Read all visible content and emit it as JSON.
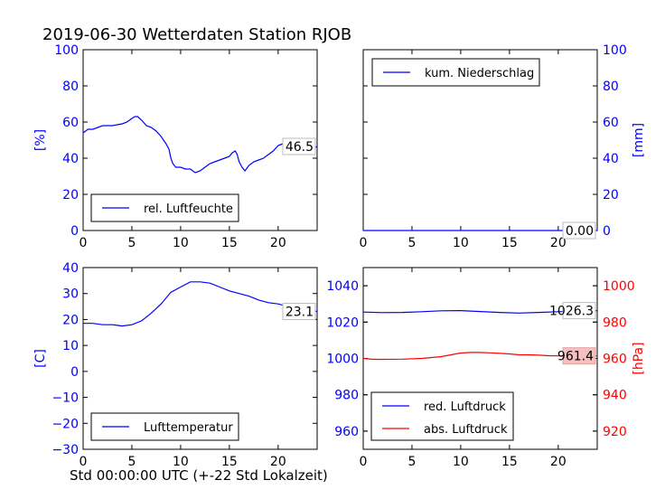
{
  "figure": {
    "title": "2019-06-30 Wetterdaten Station RJOB",
    "xlabel": "Std 00:00:00 UTC (+-22 Std Lokalzeit)"
  },
  "chart_data": [
    {
      "id": "humidity",
      "type": "line",
      "ylabel": "[%]",
      "ylabel_color": "#0000ff",
      "tick_color": "#0000ff",
      "xlim": [
        0,
        24
      ],
      "ylim": [
        0,
        100
      ],
      "xticks": [
        0,
        5,
        10,
        15,
        20
      ],
      "yticks": [
        0,
        20,
        40,
        60,
        80,
        100
      ],
      "grid": false,
      "legend_position": "lower-left",
      "series": [
        {
          "name": "rel. Luftfeuchte",
          "color": "#0000ff",
          "x": [
            0,
            0.5,
            1,
            2,
            3,
            4,
            4.5,
            5,
            5.3,
            5.6,
            6,
            6.5,
            7,
            7.5,
            8,
            8.5,
            8.8,
            9,
            9.2,
            9.5,
            10,
            10.5,
            11,
            11.5,
            12,
            12.5,
            13,
            13.5,
            14,
            14.5,
            15,
            15.3,
            15.6,
            15.8,
            16,
            16.3,
            16.6,
            17,
            17.5,
            18,
            18.5,
            19,
            19.5,
            20,
            20.5,
            21,
            21.5,
            22,
            22.5,
            23,
            23.5,
            24
          ],
          "y": [
            54,
            56,
            56,
            58,
            58,
            59,
            60,
            62,
            63,
            63,
            61,
            58,
            57,
            55,
            52,
            48,
            45,
            40,
            37,
            35,
            35,
            34,
            34,
            32,
            33,
            35,
            37,
            38,
            39,
            40,
            41,
            43,
            44,
            42,
            38,
            35,
            33,
            36,
            38,
            39,
            40,
            42,
            44,
            47,
            48,
            49,
            49,
            48,
            46,
            44,
            45,
            46.5
          ]
        }
      ],
      "value_label": "46.5"
    },
    {
      "id": "precipitation",
      "type": "line",
      "ylabel": "[mm]",
      "ylabel_color": "#0000ff",
      "tick_color": "#0000ff",
      "yaxis_side": "right",
      "xlim": [
        0,
        24
      ],
      "ylim": [
        0,
        100
      ],
      "xticks": [
        0,
        5,
        10,
        15,
        20
      ],
      "yticks": [
        0,
        20,
        40,
        60,
        80,
        100
      ],
      "grid": false,
      "legend_position": "upper-left",
      "series": [
        {
          "name": "kum. Niederschlag",
          "color": "#0000ff",
          "x": [
            0,
            24
          ],
          "y": [
            0,
            0
          ]
        }
      ],
      "value_label": "0.00"
    },
    {
      "id": "temperature",
      "type": "line",
      "ylabel": "[C]",
      "ylabel_color": "#0000ff",
      "tick_color": "#0000ff",
      "xlim": [
        0,
        24
      ],
      "ylim": [
        -30,
        40
      ],
      "xticks": [
        0,
        5,
        10,
        15,
        20
      ],
      "yticks": [
        -30,
        -20,
        -10,
        0,
        10,
        20,
        30,
        40
      ],
      "ytick_labels": [
        "−30",
        "−20",
        "−10",
        "0",
        "10",
        "20",
        "30",
        "40"
      ],
      "grid": false,
      "legend_position": "lower-left",
      "series": [
        {
          "name": "Lufttemperatur",
          "color": "#0000ff",
          "x": [
            0,
            1,
            2,
            3,
            4,
            5,
            6,
            7,
            8,
            9,
            10,
            11,
            12,
            13,
            14,
            15,
            16,
            17,
            18,
            19,
            20,
            21,
            22,
            23,
            24
          ],
          "y": [
            18.5,
            18.5,
            18,
            18,
            17.5,
            18,
            19.5,
            22.5,
            26,
            30.5,
            32.5,
            34.5,
            34.5,
            34,
            32.5,
            31,
            30,
            29,
            27.5,
            26.5,
            26,
            25,
            24,
            23.5,
            23.1
          ]
        }
      ],
      "value_label": "23.1"
    },
    {
      "id": "pressure",
      "type": "line",
      "ylabel": "[hPa]",
      "ylabel_color": "#ff0000",
      "xlim": [
        0,
        24
      ],
      "ylim_left": [
        950,
        1050
      ],
      "ylim_right": [
        910,
        1010
      ],
      "xticks": [
        0,
        5,
        10,
        15,
        20
      ],
      "yticks_left": [
        960,
        980,
        1000,
        1020,
        1040
      ],
      "yticks_right": [
        920,
        940,
        960,
        980,
        1000
      ],
      "tick_color_left": "#0000ff",
      "tick_color_right": "#ff0000",
      "grid": false,
      "legend_position": "lower-left",
      "series": [
        {
          "name": "red. Luftdruck",
          "color": "#0000ff",
          "axis": "left",
          "x": [
            0,
            2,
            4,
            6,
            8,
            10,
            12,
            14,
            16,
            18,
            20,
            22,
            24
          ],
          "y": [
            1025.5,
            1025.2,
            1025.3,
            1025.7,
            1026.2,
            1026.3,
            1025.8,
            1025.3,
            1025,
            1025.3,
            1025.7,
            1026,
            1026.3
          ]
        },
        {
          "name": "abs. Luftdruck",
          "color": "#ff0000",
          "axis": "right",
          "x": [
            0,
            1,
            2,
            4,
            6,
            8,
            9,
            10,
            11,
            12,
            13,
            14,
            15,
            16,
            17,
            18,
            19,
            20,
            22,
            24
          ],
          "y": [
            960,
            959.5,
            959.5,
            959.6,
            960,
            961,
            962,
            963,
            963.3,
            963.3,
            963.1,
            962.8,
            962.5,
            962,
            962,
            961.8,
            961.5,
            961.4,
            961.3,
            961.4
          ]
        }
      ],
      "value_label_left": "1026.3",
      "value_label_right": "961.4"
    }
  ]
}
